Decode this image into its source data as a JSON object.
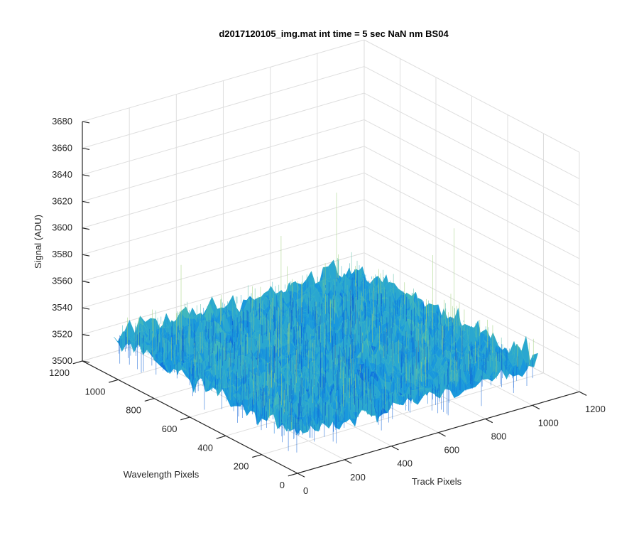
{
  "chart_data": {
    "type": "surface",
    "title": "d2017120105_img.mat int time = 5 sec  NaN nm BS04",
    "zlabel": "Signal (ADU)",
    "xlabel": "Track Pixels",
    "ylabel": "Wavelength Pixels",
    "x_ticks": [
      "0",
      "200",
      "400",
      "600",
      "800",
      "1000",
      "1200"
    ],
    "y_ticks": [
      "0",
      "200",
      "400",
      "600",
      "800",
      "1000",
      "1200"
    ],
    "z_ticks": [
      "3500",
      "3520",
      "3540",
      "3560",
      "3580",
      "3600",
      "3620",
      "3640",
      "3660",
      "3680"
    ],
    "xlim": [
      0,
      1200
    ],
    "ylim": [
      0,
      1200
    ],
    "zlim": [
      3500,
      3680
    ],
    "x_data_range": [
      0,
      1024
    ],
    "y_data_range": [
      0,
      1024
    ],
    "z_mean": 3530,
    "z_typical_range": [
      3515,
      3550
    ],
    "z_max_spike": 3620,
    "grid": "on",
    "colormap": [
      "#0b5fd6",
      "#1177dd",
      "#1a98dc",
      "#2aa7d0",
      "#3db5c0",
      "#5cc0a8",
      "#9ed07a"
    ]
  }
}
